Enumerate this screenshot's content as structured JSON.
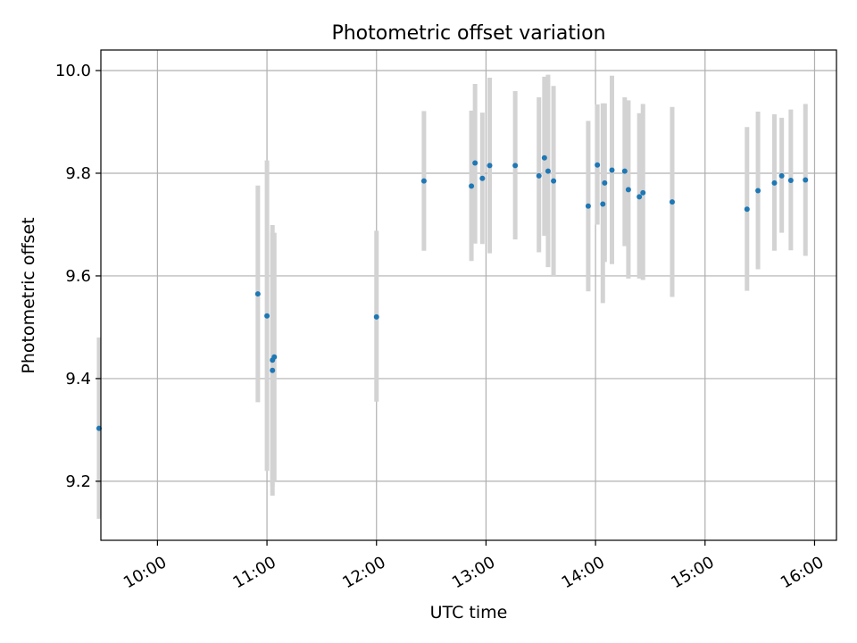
{
  "colors": {
    "point": "#1f77b4",
    "errorbar": "#d3d3d3",
    "grid": "#b0b0b0",
    "axes": "#000000"
  },
  "chart_data": {
    "type": "scatter",
    "title": "Photometric offset variation",
    "xlabel": "UTC time",
    "ylabel": "Photometric offset",
    "x_tick_labels": [
      "10:00",
      "11:00",
      "12:00",
      "13:00",
      "14:00",
      "15:00",
      "16:00"
    ],
    "y_tick_labels": [
      "9.2",
      "9.4",
      "9.6",
      "9.8",
      "10.0"
    ],
    "xlim": [
      "09:29",
      "16:12"
    ],
    "ylim": [
      9.085,
      10.04
    ],
    "grid": true,
    "legend": "none",
    "series": [
      {
        "marker": "point",
        "errorbars": true,
        "points": [
          {
            "x": "09:28",
            "y": 9.303,
            "lo": 9.127,
            "hi": 9.48
          },
          {
            "x": "10:55",
            "y": 9.565,
            "lo": 9.354,
            "hi": 9.776
          },
          {
            "x": "11:00",
            "y": 9.522,
            "lo": 9.22,
            "hi": 9.825
          },
          {
            "x": "11:03",
            "y": 9.416,
            "lo": 9.172,
            "hi": 9.699
          },
          {
            "x": "11:03",
            "y": 9.436,
            "lo": 9.19,
            "hi": 9.684
          },
          {
            "x": "11:04",
            "y": 9.442,
            "lo": 9.2,
            "hi": 9.684
          },
          {
            "x": "12:00",
            "y": 9.52,
            "lo": 9.355,
            "hi": 9.688
          },
          {
            "x": "12:26",
            "y": 9.785,
            "lo": 9.649,
            "hi": 9.921
          },
          {
            "x": "12:52",
            "y": 9.775,
            "lo": 9.629,
            "hi": 9.922
          },
          {
            "x": "12:54",
            "y": 9.82,
            "lo": 9.663,
            "hi": 9.974
          },
          {
            "x": "12:58",
            "y": 9.79,
            "lo": 9.662,
            "hi": 9.918
          },
          {
            "x": "13:02",
            "y": 9.815,
            "lo": 9.644,
            "hi": 9.986
          },
          {
            "x": "13:16",
            "y": 9.815,
            "lo": 9.671,
            "hi": 9.96
          },
          {
            "x": "13:29",
            "y": 9.795,
            "lo": 9.646,
            "hi": 9.948
          },
          {
            "x": "13:32",
            "y": 9.83,
            "lo": 9.678,
            "hi": 9.988
          },
          {
            "x": "13:34",
            "y": 9.804,
            "lo": 9.617,
            "hi": 9.992
          },
          {
            "x": "13:37",
            "y": 9.785,
            "lo": 9.6,
            "hi": 9.97
          },
          {
            "x": "13:56",
            "y": 9.736,
            "lo": 9.57,
            "hi": 9.902
          },
          {
            "x": "14:01",
            "y": 9.816,
            "lo": 9.7,
            "hi": 9.934
          },
          {
            "x": "14:04",
            "y": 9.74,
            "lo": 9.547,
            "hi": 9.936
          },
          {
            "x": "14:05",
            "y": 9.781,
            "lo": 9.627,
            "hi": 9.936
          },
          {
            "x": "14:09",
            "y": 9.806,
            "lo": 9.623,
            "hi": 9.99
          },
          {
            "x": "14:16",
            "y": 9.804,
            "lo": 9.658,
            "hi": 9.948
          },
          {
            "x": "14:18",
            "y": 9.768,
            "lo": 9.595,
            "hi": 9.942
          },
          {
            "x": "14:24",
            "y": 9.754,
            "lo": 9.595,
            "hi": 9.917
          },
          {
            "x": "14:26",
            "y": 9.762,
            "lo": 9.592,
            "hi": 9.935
          },
          {
            "x": "14:42",
            "y": 9.744,
            "lo": 9.559,
            "hi": 9.929
          },
          {
            "x": "15:23",
            "y": 9.73,
            "lo": 9.571,
            "hi": 9.89
          },
          {
            "x": "15:29",
            "y": 9.766,
            "lo": 9.613,
            "hi": 9.92
          },
          {
            "x": "15:38",
            "y": 9.781,
            "lo": 9.649,
            "hi": 9.915
          },
          {
            "x": "15:42",
            "y": 9.795,
            "lo": 9.684,
            "hi": 9.908
          },
          {
            "x": "15:47",
            "y": 9.786,
            "lo": 9.65,
            "hi": 9.924
          },
          {
            "x": "15:55",
            "y": 9.787,
            "lo": 9.639,
            "hi": 9.935
          }
        ]
      }
    ]
  }
}
